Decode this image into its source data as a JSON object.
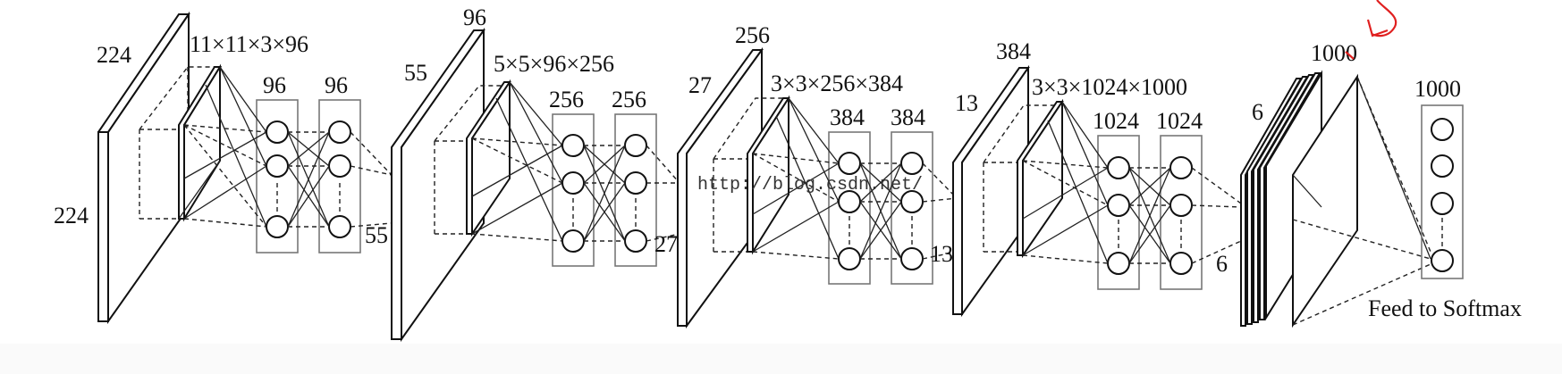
{
  "diagram": {
    "watermark": "http://blog.csdn.net/",
    "input": {
      "height_label": "224",
      "width_label": "224"
    },
    "conv1": {
      "kernel_label": "11×11×3×96",
      "box_labels": [
        "96",
        "96"
      ],
      "output_size": "55"
    },
    "stage2_input": {
      "depth_label": "96",
      "height_label": "55"
    },
    "conv2": {
      "kernel_label": "5×5×96×256",
      "box_labels": [
        "256",
        "256"
      ],
      "output_size": "27"
    },
    "stage3_input": {
      "depth_label": "256",
      "height_label": "27"
    },
    "conv3": {
      "kernel_label": "3×3×256×384",
      "box_labels": [
        "384",
        "384"
      ],
      "output_size": "13"
    },
    "stage4_input": {
      "depth_label": "384",
      "height_label": "13"
    },
    "conv4": {
      "kernel_label": "3×3×1024×1000",
      "box_labels": [
        "1024",
        "1024"
      ],
      "output_size": "6"
    },
    "fc_stack": {
      "height_label": "6"
    },
    "fc": {
      "label": "1000"
    },
    "output": {
      "label": "1000",
      "caption": "Feed to Softmax"
    }
  }
}
